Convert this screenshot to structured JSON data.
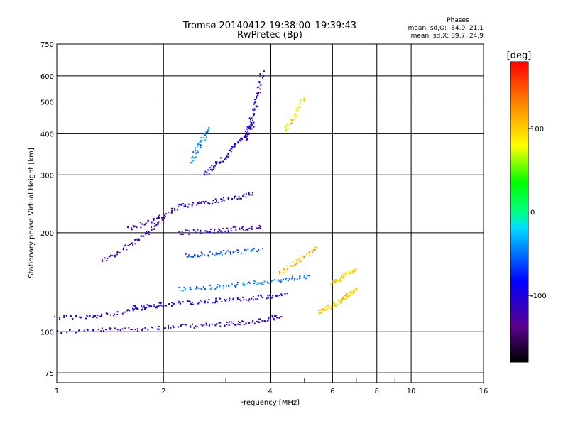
{
  "chart_data": {
    "type": "scatter",
    "title": "Tromsø 20140412 19:38:00–19:39:43",
    "subtitle": "RwPretec (Bp)",
    "xlabel": "Frequency [MHz]",
    "ylabel": "Stationary phase Virtual Height [km]",
    "x_scale": "log",
    "y_scale": "log",
    "xlim": [
      1,
      16
    ],
    "ylim": [
      70,
      750
    ],
    "x_ticks": [
      1,
      2,
      4,
      6,
      8,
      10,
      16
    ],
    "y_ticks": [
      75,
      100,
      200,
      300,
      400,
      500,
      600,
      750
    ],
    "grid": true,
    "legend": {
      "title": "Phases",
      "line1": "mean, sd,O: -84.9, 21.1",
      "line2": "mean, sd,X: 89.7, 24.9"
    },
    "colorbar": {
      "label": "[deg]",
      "range": [
        -180,
        180
      ],
      "ticks": [
        100,
        0,
        -100
      ]
    },
    "traces": [
      {
        "x": [
          1.0,
          1.3,
          1.6,
          2.0,
          2.4,
          2.8,
          3.2,
          3.6,
          4.0,
          4.3
        ],
        "y": [
          100,
          101,
          102,
          103,
          104,
          105,
          106,
          107,
          109,
          112
        ],
        "phase": -110
      },
      {
        "x": [
          1.0,
          1.2,
          1.4,
          1.7,
          2.0
        ],
        "y": [
          110,
          111,
          113,
          117,
          122
        ],
        "phase": -105
      },
      {
        "x": [
          1.6,
          1.9,
          2.2,
          2.6,
          3.0,
          3.5,
          4.0,
          4.5
        ],
        "y": [
          118,
          120,
          122,
          123,
          125,
          126,
          128,
          130
        ],
        "phase": -95
      },
      {
        "x": [
          2.2,
          2.6,
          3.0,
          3.5,
          4.0,
          4.6,
          5.2
        ],
        "y": [
          135,
          136,
          138,
          140,
          142,
          145,
          148
        ],
        "phase": -50
      },
      {
        "x": [
          1.35,
          1.5,
          1.7,
          1.85,
          2.0
        ],
        "y": [
          165,
          175,
          190,
          205,
          220
        ],
        "phase": -115
      },
      {
        "x": [
          1.6,
          1.8,
          2.0,
          2.2
        ],
        "y": [
          205,
          215,
          225,
          240
        ],
        "phase": -110
      },
      {
        "x": [
          2.3,
          2.6,
          3.0,
          3.4,
          3.8
        ],
        "y": [
          170,
          172,
          174,
          176,
          178
        ],
        "phase": -60
      },
      {
        "x": [
          2.2,
          2.6,
          3.0,
          3.4,
          3.8
        ],
        "y": [
          200,
          202,
          204,
          206,
          208
        ],
        "phase": -105
      },
      {
        "x": [
          2.2,
          2.5,
          2.8,
          3.2,
          3.6
        ],
        "y": [
          240,
          245,
          250,
          256,
          262
        ],
        "phase": -100
      },
      {
        "x": [
          2.6,
          2.8,
          3.0,
          3.2,
          3.4,
          3.6
        ],
        "y": [
          300,
          320,
          340,
          370,
          400,
          430
        ],
        "phase": -100
      },
      {
        "x": [
          2.4,
          2.5,
          2.6,
          2.7
        ],
        "y": [
          330,
          360,
          390,
          420
        ],
        "phase": -45
      },
      {
        "x": [
          3.4,
          3.5,
          3.6,
          3.7,
          3.8
        ],
        "y": [
          380,
          420,
          470,
          530,
          620
        ],
        "phase": -110
      },
      {
        "x": [
          4.4,
          4.6,
          4.8,
          5.0
        ],
        "y": [
          410,
          440,
          480,
          520
        ],
        "phase": 90
      },
      {
        "x": [
          4.2,
          4.6,
          5.0,
          5.4
        ],
        "y": [
          150,
          160,
          170,
          180
        ],
        "phase": 110
      },
      {
        "x": [
          5.5,
          5.8,
          6.1,
          6.4,
          6.7,
          7.0
        ],
        "y": [
          115,
          118,
          122,
          126,
          130,
          134
        ],
        "phase": 105
      },
      {
        "x": [
          6.0,
          6.3,
          6.6,
          7.0
        ],
        "y": [
          140,
          145,
          150,
          155
        ],
        "phase": 95
      }
    ]
  }
}
